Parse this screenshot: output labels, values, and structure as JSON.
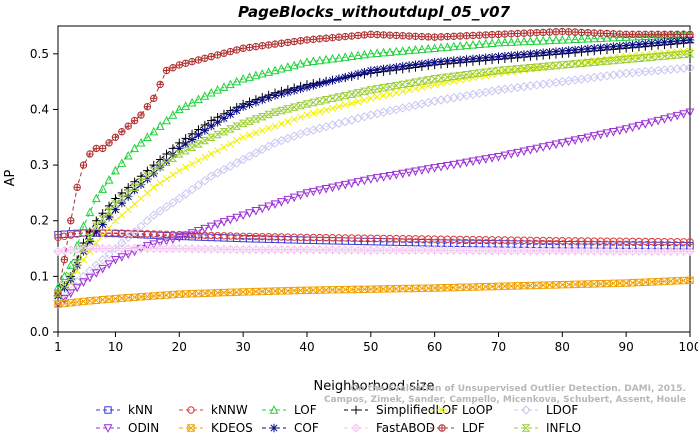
{
  "chart_data": {
    "type": "line",
    "title": "PageBlocks_withoutdupl_05_v07",
    "xlabel": "Neighborhood size",
    "ylabel": "AP",
    "xlim": [
      1,
      100
    ],
    "ylim": [
      0,
      0.55
    ],
    "xticks": [
      1,
      10,
      20,
      30,
      40,
      50,
      60,
      70,
      80,
      90,
      100
    ],
    "yticks": [
      0.0,
      0.1,
      0.2,
      0.3,
      0.4,
      0.5
    ],
    "ytick_labels": [
      "0.0",
      "0.1",
      "0.2",
      "0.3",
      "0.4",
      "0.5"
    ],
    "grid": false,
    "legend_position": "bottom",
    "watermark_lines": [
      "On the Evaluation of Unsupervised Outlier Detection. DAMI, 2015.",
      "Campos, Zimek, Sander, Campello, Micenkova, Schubert, Assent, Houle"
    ],
    "series": [
      {
        "name": "kNN",
        "color": "#3b3bd9",
        "marker": "square",
        "x": [
          1,
          5,
          10,
          20,
          30,
          40,
          60,
          80,
          100
        ],
        "y": [
          0.175,
          0.178,
          0.177,
          0.172,
          0.168,
          0.165,
          0.16,
          0.157,
          0.155
        ]
      },
      {
        "name": "kNNW",
        "color": "#d93b3b",
        "marker": "circle",
        "x": [
          1,
          5,
          10,
          20,
          30,
          40,
          60,
          80,
          100
        ],
        "y": [
          0.17,
          0.178,
          0.178,
          0.175,
          0.172,
          0.17,
          0.167,
          0.164,
          0.162
        ]
      },
      {
        "name": "LOF",
        "color": "#1fd13a",
        "marker": "triangle-up",
        "x": [
          1,
          3,
          5,
          7,
          10,
          13,
          16,
          20,
          25,
          30,
          35,
          40,
          50,
          60,
          70,
          80,
          90,
          100
        ],
        "y": [
          0.08,
          0.12,
          0.19,
          0.24,
          0.29,
          0.33,
          0.36,
          0.4,
          0.43,
          0.455,
          0.47,
          0.485,
          0.5,
          0.51,
          0.52,
          0.525,
          0.53,
          0.535
        ]
      },
      {
        "name": "SimplifiedLOF",
        "color": "#000000",
        "marker": "plus",
        "x": [
          1,
          3,
          5,
          7,
          10,
          13,
          16,
          20,
          25,
          30,
          35,
          40,
          50,
          60,
          70,
          80,
          90,
          100
        ],
        "y": [
          0.065,
          0.1,
          0.16,
          0.2,
          0.24,
          0.27,
          0.3,
          0.34,
          0.38,
          0.41,
          0.43,
          0.445,
          0.465,
          0.48,
          0.49,
          0.5,
          0.51,
          0.52
        ]
      },
      {
        "name": "LoOP",
        "color": "#f0f000",
        "marker": "x",
        "x": [
          1,
          3,
          5,
          7,
          10,
          13,
          16,
          20,
          25,
          30,
          35,
          40,
          50,
          60,
          70,
          80,
          90,
          100
        ],
        "y": [
          0.065,
          0.09,
          0.13,
          0.16,
          0.2,
          0.23,
          0.26,
          0.29,
          0.32,
          0.35,
          0.37,
          0.39,
          0.42,
          0.445,
          0.465,
          0.48,
          0.495,
          0.505
        ]
      },
      {
        "name": "LDOF",
        "color": "#c8c8f2",
        "marker": "diamond",
        "x": [
          1,
          3,
          5,
          7,
          10,
          13,
          16,
          20,
          25,
          30,
          35,
          40,
          50,
          60,
          70,
          80,
          90,
          100
        ],
        "y": [
          0.06,
          0.08,
          0.1,
          0.12,
          0.15,
          0.18,
          0.21,
          0.24,
          0.28,
          0.31,
          0.34,
          0.36,
          0.39,
          0.415,
          0.435,
          0.45,
          0.465,
          0.475
        ]
      },
      {
        "name": "ODIN",
        "color": "#9b2fd6",
        "marker": "triangle-down",
        "x": [
          1,
          5,
          10,
          15,
          20,
          30,
          40,
          50,
          60,
          70,
          80,
          90,
          100
        ],
        "y": [
          0.05,
          0.09,
          0.13,
          0.155,
          0.17,
          0.21,
          0.25,
          0.275,
          0.295,
          0.315,
          0.34,
          0.365,
          0.395
        ]
      },
      {
        "name": "KDEOS",
        "color": "#f0a000",
        "marker": "square-x",
        "x": [
          1,
          5,
          10,
          20,
          30,
          40,
          50,
          60,
          70,
          80,
          90,
          100
        ],
        "y": [
          0.05,
          0.055,
          0.06,
          0.068,
          0.072,
          0.075,
          0.077,
          0.079,
          0.082,
          0.085,
          0.088,
          0.093
        ]
      },
      {
        "name": "COF",
        "color": "#0a0a80",
        "marker": "asterisk",
        "x": [
          1,
          3,
          5,
          7,
          10,
          13,
          16,
          20,
          25,
          30,
          35,
          40,
          50,
          60,
          70,
          80,
          90,
          100
        ],
        "y": [
          0.065,
          0.095,
          0.145,
          0.18,
          0.22,
          0.255,
          0.285,
          0.33,
          0.37,
          0.405,
          0.425,
          0.44,
          0.47,
          0.485,
          0.495,
          0.505,
          0.515,
          0.525
        ]
      },
      {
        "name": "FastABOD",
        "color": "#f2c8f2",
        "marker": "diamond-plus",
        "x": [
          1,
          5,
          10,
          20,
          30,
          40,
          50,
          60,
          70,
          80,
          90,
          100
        ],
        "y": [
          0.145,
          0.15,
          0.15,
          0.15,
          0.148,
          0.148,
          0.147,
          0.147,
          0.146,
          0.146,
          0.145,
          0.145
        ]
      },
      {
        "name": "LDF",
        "color": "#b03030",
        "marker": "circle-plus",
        "x": [
          1,
          2,
          3,
          4,
          5,
          6,
          7,
          8,
          10,
          12,
          14,
          16,
          18,
          20,
          25,
          30,
          40,
          50,
          60,
          70,
          80,
          90,
          100
        ],
        "y": [
          0.07,
          0.13,
          0.2,
          0.26,
          0.3,
          0.32,
          0.33,
          0.33,
          0.35,
          0.37,
          0.39,
          0.42,
          0.47,
          0.48,
          0.495,
          0.51,
          0.525,
          0.535,
          0.53,
          0.535,
          0.54,
          0.535,
          0.535
        ]
      },
      {
        "name": "INFLO",
        "color": "#9acd32",
        "marker": "hourglass",
        "x": [
          1,
          3,
          5,
          7,
          10,
          13,
          16,
          20,
          25,
          30,
          35,
          40,
          50,
          60,
          70,
          80,
          90,
          100
        ],
        "y": [
          0.07,
          0.1,
          0.15,
          0.19,
          0.23,
          0.26,
          0.29,
          0.32,
          0.35,
          0.375,
          0.395,
          0.41,
          0.435,
          0.455,
          0.47,
          0.48,
          0.49,
          0.5
        ]
      }
    ]
  }
}
